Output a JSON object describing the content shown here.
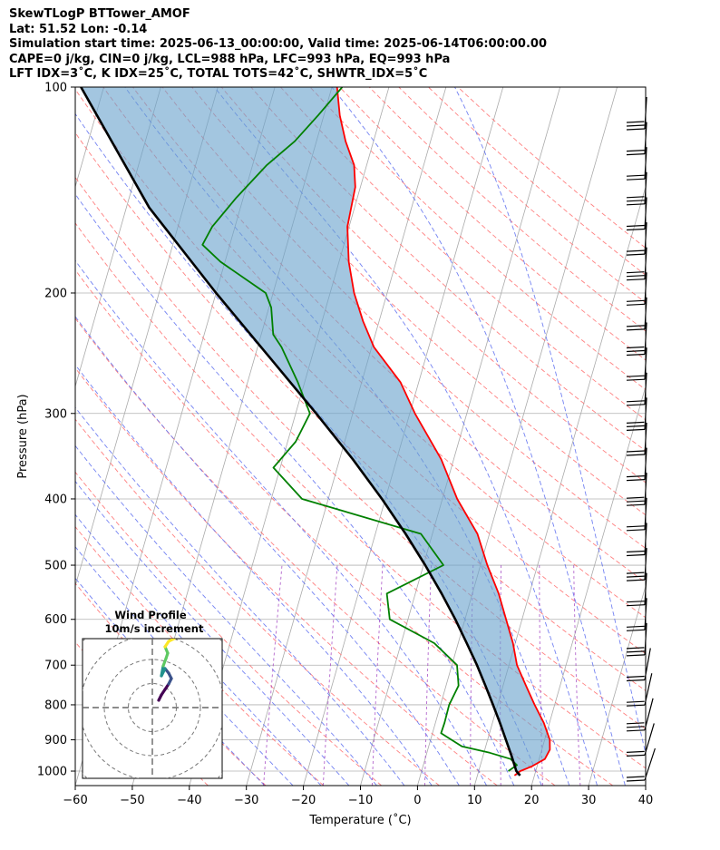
{
  "header": {
    "lines": [
      "SkewTLogP BTTower_AMOF",
      "Lat: 51.52   Lon: -0.14",
      "Simulation start time: 2025-06-13_00:00:00, Valid time: 2025-06-14T06:00:00.00",
      "CAPE=0 j/kg, CIN=0 j/kg, LCL=988 hPa, LFC=993 hPa, EQ=993 hPa",
      "LFT IDX=3˚C, K IDX=25˚C, TOTAL TOTS=42˚C, SHWTR_IDX=5˚C"
    ]
  },
  "chart_data": [
    {
      "type": "line",
      "subtype": "skew-t log-p",
      "xlabel": "Temperature (˚C)",
      "ylabel": "Pressure (hPa)",
      "xlim": [
        -60,
        40
      ],
      "ylim": [
        1050,
        100
      ],
      "y_scale": "log",
      "xticks": [
        -60,
        -50,
        -40,
        -30,
        -20,
        -10,
        0,
        10,
        20,
        30,
        40
      ],
      "yticks": [
        100,
        200,
        300,
        400,
        500,
        600,
        700,
        800,
        900,
        1000
      ],
      "grid": true,
      "series": [
        {
          "role": "temperature",
          "color": "#ff0000",
          "points": [
            [
              1015,
              16.5
            ],
            [
              1000,
              17.3
            ],
            [
              985,
              19.0
            ],
            [
              960,
              21.0
            ],
            [
              930,
              21.4
            ],
            [
              900,
              20.9
            ],
            [
              850,
              19.0
            ],
            [
              800,
              16.5
            ],
            [
              750,
              14.0
            ],
            [
              700,
              11.4
            ],
            [
              650,
              9.6
            ],
            [
              600,
              7.2
            ],
            [
              550,
              4.6
            ],
            [
              500,
              1.2
            ],
            [
              450,
              -2.1
            ],
            [
              400,
              -7.4
            ],
            [
              350,
              -12.2
            ],
            [
              300,
              -19.1
            ],
            [
              270,
              -23.2
            ],
            [
              240,
              -29.6
            ],
            [
              220,
              -32.8
            ],
            [
              200,
              -35.8
            ],
            [
              180,
              -38.3
            ],
            [
              160,
              -40.3
            ],
            [
              140,
              -40.9
            ],
            [
              130,
              -42.2
            ],
            [
              120,
              -44.9
            ],
            [
              110,
              -47.2
            ],
            [
              100,
              -49.1
            ]
          ]
        },
        {
          "role": "dewpoint",
          "color": "#008000",
          "points": [
            [
              1000,
              15.2
            ],
            [
              980,
              16.4
            ],
            [
              960,
              15.0
            ],
            [
              940,
              11.0
            ],
            [
              920,
              5.8
            ],
            [
              880,
              1.5
            ],
            [
              850,
              1.6
            ],
            [
              800,
              1.5
            ],
            [
              750,
              2.2
            ],
            [
              700,
              0.9
            ],
            [
              650,
              -4.2
            ],
            [
              600,
              -13.2
            ],
            [
              550,
              -15.0
            ],
            [
              500,
              -6.5
            ],
            [
              450,
              -12.0
            ],
            [
              400,
              -34.6
            ],
            [
              360,
              -41.2
            ],
            [
              330,
              -38.6
            ],
            [
              300,
              -37.5
            ],
            [
              270,
              -41.2
            ],
            [
              240,
              -45.8
            ],
            [
              230,
              -47.9
            ],
            [
              210,
              -49.6
            ],
            [
              200,
              -51.3
            ],
            [
              180,
              -60.8
            ],
            [
              170,
              -64.8
            ],
            [
              160,
              -64.0
            ],
            [
              145,
              -61.2
            ],
            [
              130,
              -57.5
            ],
            [
              120,
              -53.8
            ],
            [
              110,
              -51.0
            ],
            [
              100,
              -48.2
            ]
          ]
        },
        {
          "role": "parcel",
          "color": "#000000",
          "points": [
            [
              1015,
              17.5
            ],
            [
              1000,
              16.6
            ],
            [
              950,
              15.0
            ],
            [
              900,
              13.2
            ],
            [
              850,
              11.3
            ],
            [
              800,
              9.2
            ],
            [
              750,
              6.9
            ],
            [
              700,
              4.4
            ],
            [
              650,
              1.5
            ],
            [
              600,
              -1.7
            ],
            [
              550,
              -5.4
            ],
            [
              500,
              -9.7
            ],
            [
              450,
              -14.7
            ],
            [
              400,
              -20.6
            ],
            [
              350,
              -27.7
            ],
            [
              300,
              -36.4
            ],
            [
              250,
              -47.0
            ],
            [
              200,
              -60.0
            ],
            [
              150,
              -76.0
            ],
            [
              100,
              -94.0
            ]
          ]
        }
      ],
      "shaded_region": {
        "between": [
          "temperature",
          "parcel"
        ],
        "color": "#6aa3cd"
      },
      "wind_barbs": {
        "color": "#000000",
        "position": "right"
      },
      "reference_lines": {
        "isotherms": {
          "color": "#aaaaaa"
        },
        "dry_adiabats": {
          "color": "#ff6a6a"
        },
        "moist_adiabats": {
          "color": "#5a6cf0"
        },
        "mixing_ratio": {
          "color": "#a040c0"
        }
      }
    },
    {
      "type": "hodograph",
      "title": "Wind Profile",
      "subtitle": "10m/s increment",
      "ring_spacing": 10,
      "colormap": [
        "#440154",
        "#3b528b",
        "#21918c",
        "#5ec962",
        "#fde725"
      ]
    }
  ]
}
